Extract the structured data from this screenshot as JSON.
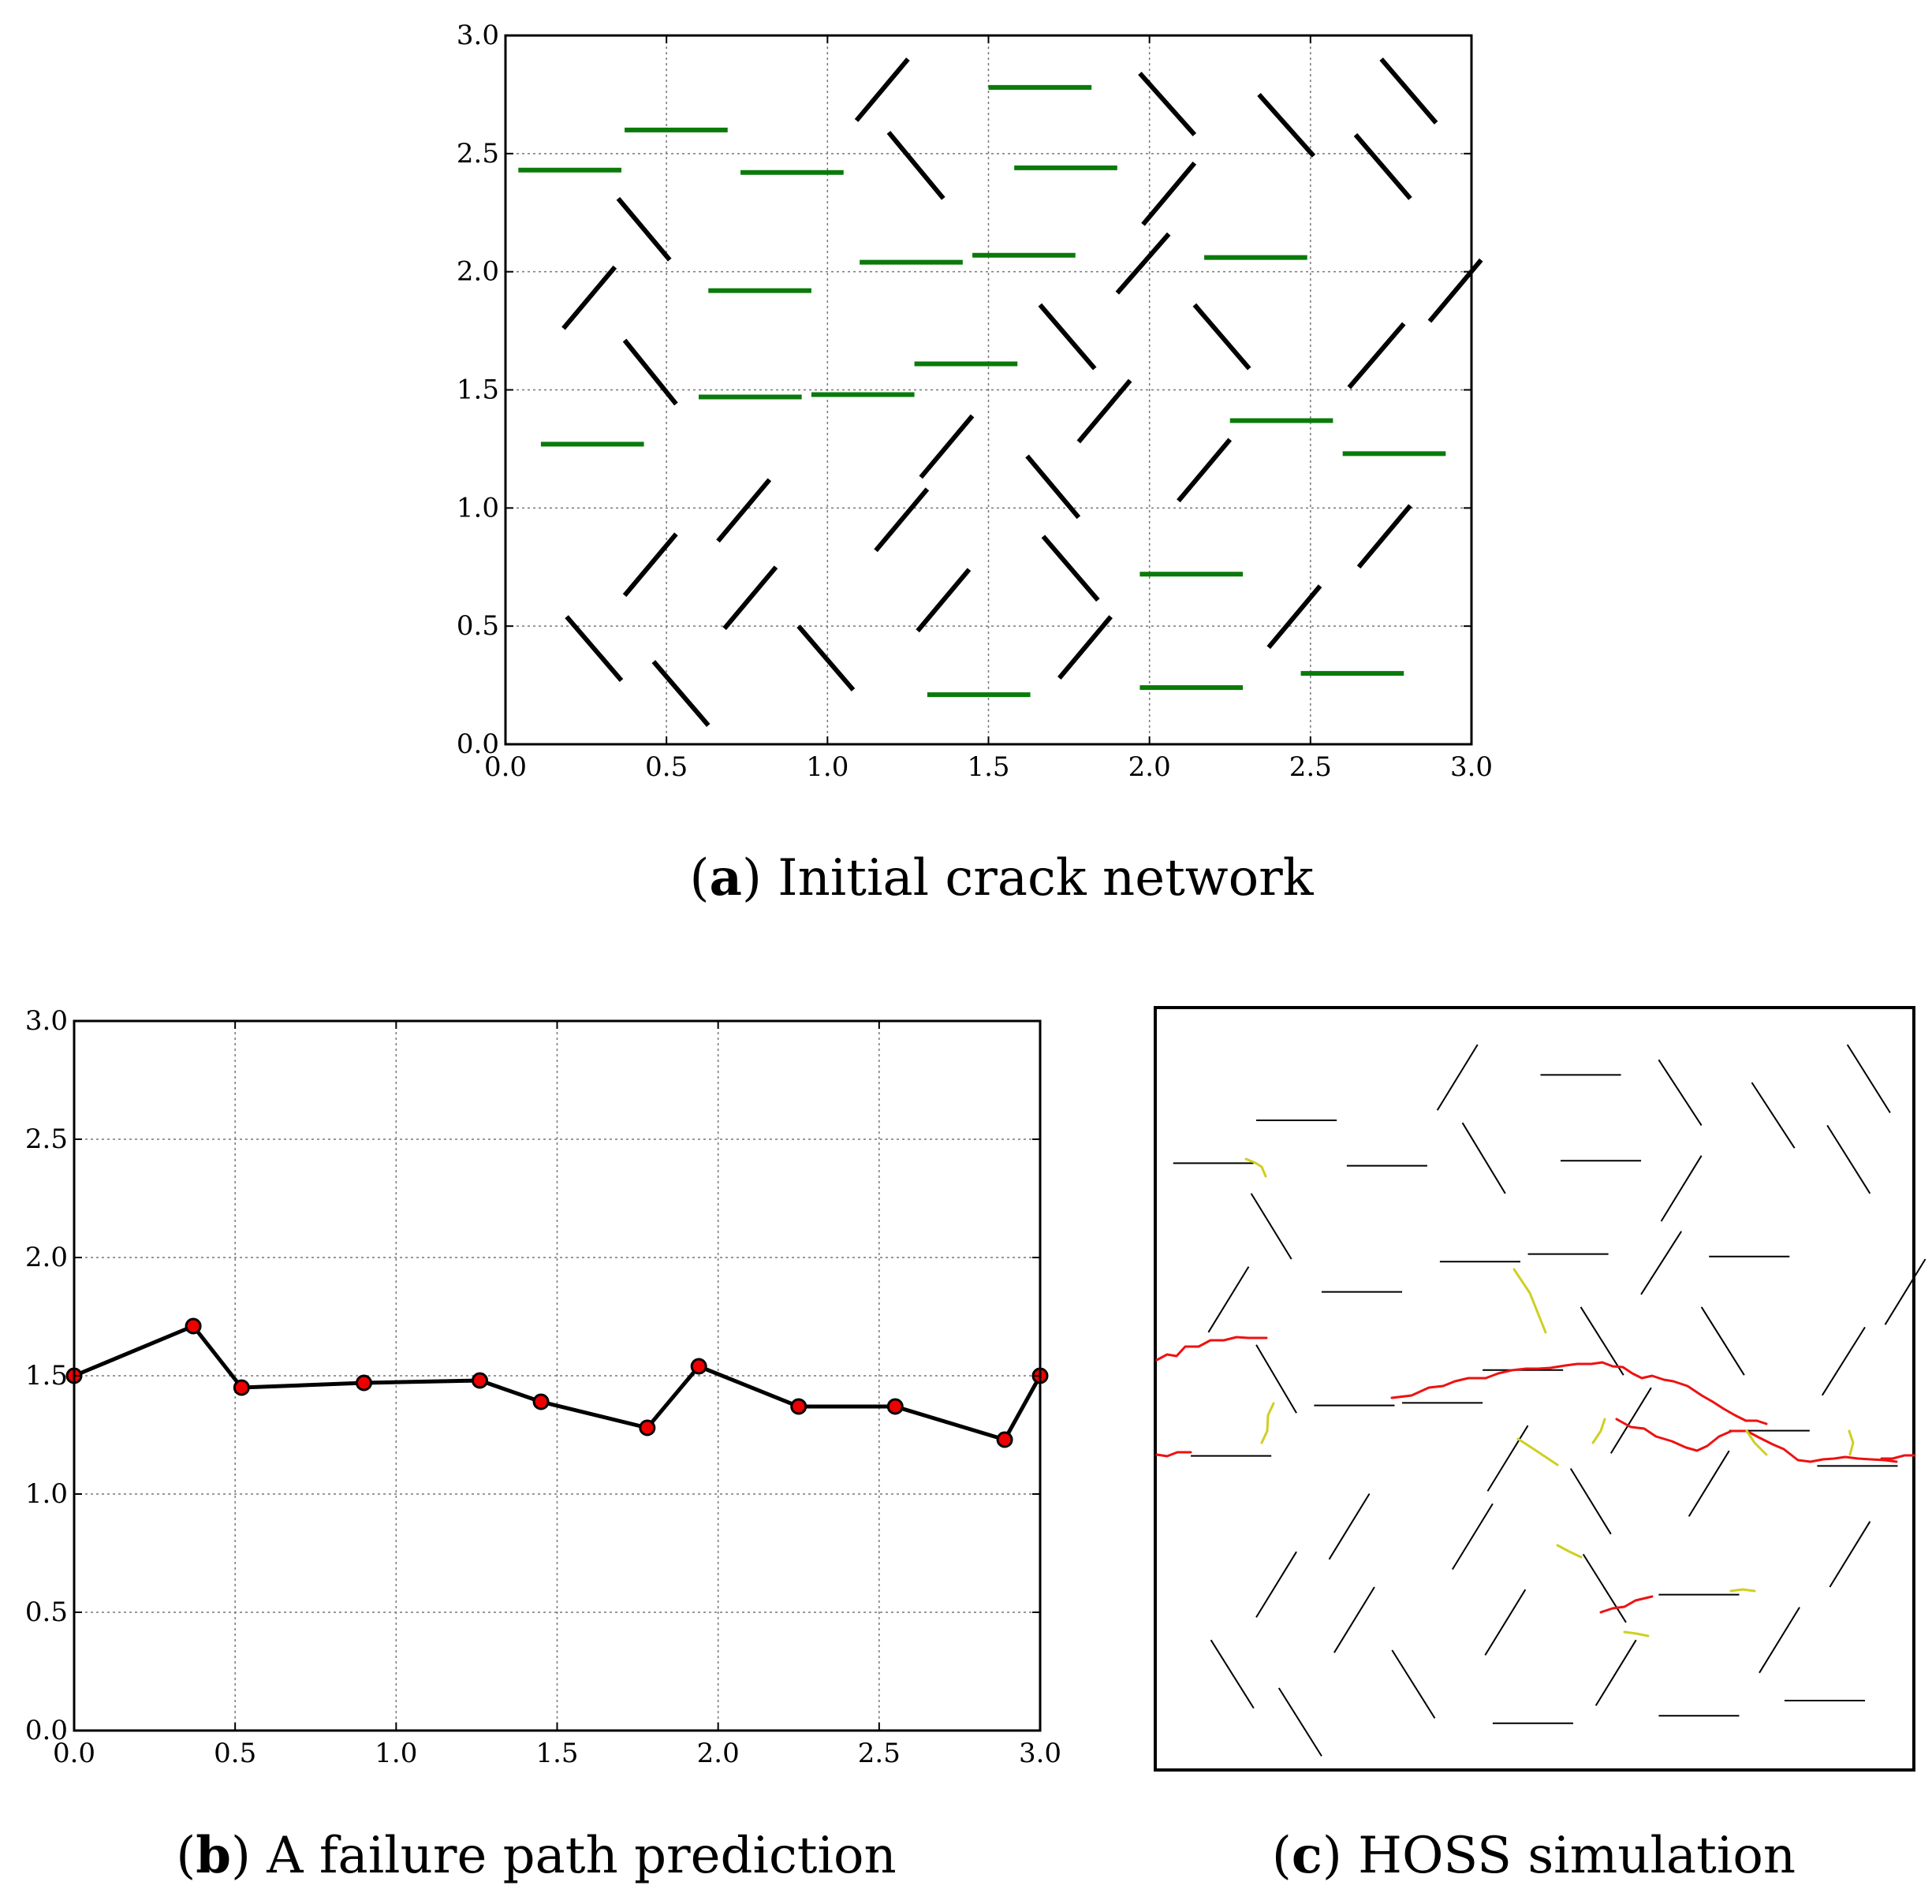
{
  "panels": {
    "a": {
      "letter": "a",
      "caption": "Initial crack network"
    },
    "b": {
      "letter": "b",
      "caption": "A failure path prediction"
    },
    "c": {
      "letter": "c",
      "caption": "HOSS simulation"
    }
  },
  "chart_data": [
    {
      "type": "line",
      "panel": "a",
      "xlim": [
        0,
        3
      ],
      "ylim": [
        0,
        3
      ],
      "xticks": [
        "0.0",
        "0.5",
        "1.0",
        "1.5",
        "2.0",
        "2.5",
        "3.0"
      ],
      "yticks": [
        "0.0",
        "0.5",
        "1.0",
        "1.5",
        "2.0",
        "2.5",
        "3.0"
      ],
      "grid": true,
      "colors": {
        "horizontal": "#0a7a0a",
        "inclined": "#000000"
      },
      "series": [
        {
          "group": "horizontal",
          "segments": [
            [
              0.04,
              2.43,
              0.36,
              2.43
            ],
            [
              0.37,
              2.6,
              0.69,
              2.6
            ],
            [
              0.73,
              2.42,
              1.05,
              2.42
            ],
            [
              1.5,
              2.78,
              1.82,
              2.78
            ],
            [
              1.58,
              2.44,
              1.9,
              2.44
            ],
            [
              0.63,
              1.92,
              0.95,
              1.92
            ],
            [
              1.1,
              2.04,
              1.42,
              2.04
            ],
            [
              1.45,
              2.07,
              1.77,
              2.07
            ],
            [
              2.17,
              2.06,
              2.49,
              2.06
            ],
            [
              1.27,
              1.61,
              1.59,
              1.61
            ],
            [
              0.6,
              1.47,
              0.92,
              1.47
            ],
            [
              0.95,
              1.48,
              1.27,
              1.48
            ],
            [
              0.11,
              1.27,
              0.43,
              1.27
            ],
            [
              2.25,
              1.37,
              2.57,
              1.37
            ],
            [
              2.6,
              1.23,
              2.92,
              1.23
            ],
            [
              1.97,
              0.72,
              2.29,
              0.72
            ],
            [
              1.97,
              0.24,
              2.29,
              0.24
            ],
            [
              2.47,
              0.3,
              2.79,
              0.3
            ],
            [
              1.31,
              0.21,
              1.63,
              0.21
            ]
          ]
        },
        {
          "group": "inclined",
          "segments": [
            [
              1.09,
              2.64,
              1.25,
              2.9
            ],
            [
              1.19,
              2.59,
              1.36,
              2.31
            ],
            [
              1.97,
              2.84,
              2.14,
              2.58
            ],
            [
              2.34,
              2.75,
              2.51,
              2.49
            ],
            [
              2.72,
              2.9,
              2.89,
              2.63
            ],
            [
              2.64,
              2.58,
              2.81,
              2.31
            ],
            [
              1.98,
              2.2,
              2.14,
              2.46
            ],
            [
              0.35,
              2.31,
              0.51,
              2.05
            ],
            [
              1.9,
              1.91,
              2.06,
              2.16
            ],
            [
              0.18,
              1.76,
              0.34,
              2.02
            ],
            [
              2.87,
              1.79,
              3.03,
              2.05
            ],
            [
              1.66,
              1.86,
              1.83,
              1.59
            ],
            [
              2.14,
              1.86,
              2.31,
              1.59
            ],
            [
              2.62,
              1.51,
              2.79,
              1.78
            ],
            [
              0.37,
              1.71,
              0.53,
              1.44
            ],
            [
              1.78,
              1.28,
              1.94,
              1.54
            ],
            [
              1.29,
              1.13,
              1.45,
              1.39
            ],
            [
              2.09,
              1.03,
              2.25,
              1.29
            ],
            [
              1.62,
              1.22,
              1.78,
              0.96
            ],
            [
              0.66,
              0.86,
              0.82,
              1.12
            ],
            [
              1.15,
              0.82,
              1.31,
              1.08
            ],
            [
              2.65,
              0.75,
              2.81,
              1.01
            ],
            [
              0.37,
              0.63,
              0.53,
              0.89
            ],
            [
              1.67,
              0.88,
              1.84,
              0.61
            ],
            [
              0.68,
              0.49,
              0.84,
              0.75
            ],
            [
              1.28,
              0.48,
              1.44,
              0.74
            ],
            [
              2.37,
              0.41,
              2.53,
              0.67
            ],
            [
              0.19,
              0.54,
              0.36,
              0.27
            ],
            [
              0.46,
              0.35,
              0.63,
              0.08
            ],
            [
              0.91,
              0.5,
              1.08,
              0.23
            ],
            [
              1.72,
              0.28,
              1.88,
              0.54
            ]
          ]
        }
      ]
    },
    {
      "type": "line",
      "panel": "b",
      "xlim": [
        0,
        3
      ],
      "ylim": [
        0,
        3
      ],
      "xticks": [
        "0.0",
        "0.5",
        "1.0",
        "1.5",
        "2.0",
        "2.5",
        "3.0"
      ],
      "yticks": [
        "0.0",
        "0.5",
        "1.0",
        "1.5",
        "2.0",
        "2.5",
        "3.0"
      ],
      "grid": true,
      "colors": {
        "line": "#000000",
        "marker": "#ee0000"
      },
      "series": [
        {
          "x": [
            0.0,
            0.37,
            0.52,
            0.9,
            1.26,
            1.45,
            1.78,
            1.94,
            2.25,
            2.55,
            2.89,
            3.0
          ],
          "y": [
            1.5,
            1.71,
            1.45,
            1.47,
            1.48,
            1.39,
            1.28,
            1.54,
            1.37,
            1.37,
            1.23,
            1.5
          ]
        }
      ]
    }
  ],
  "simulation": {
    "panel": "c",
    "xlim": [
      0,
      3
    ],
    "ylim": [
      0,
      3
    ],
    "colors": {
      "crack": "#000000",
      "fracture": "#ee1111",
      "fracture_secondary": "#cfcf22"
    }
  }
}
